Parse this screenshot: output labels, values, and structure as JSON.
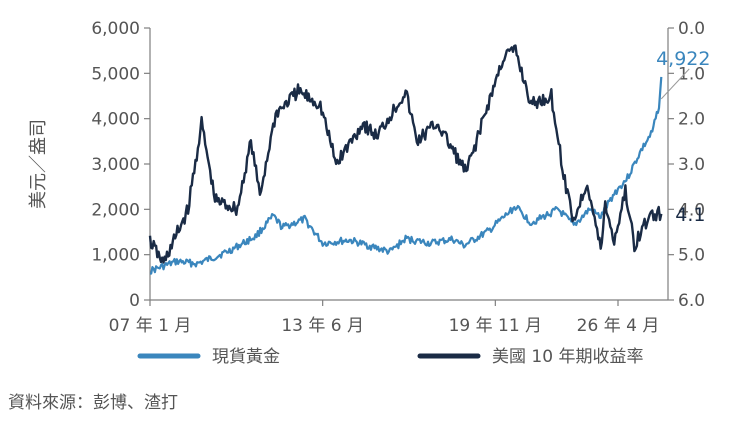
{
  "chart_data": {
    "type": "line",
    "ylabel": "美元／盎司",
    "y_left": {
      "min": 0,
      "max": 6000,
      "ticks": [
        "6,000",
        "5,000",
        "4,000",
        "3,000",
        "2,000",
        "1,000",
        "0"
      ]
    },
    "y_right": {
      "min": 0.0,
      "max": 6.0,
      "inverted": true,
      "ticks": [
        "0.0",
        "1.0",
        "2.0",
        "3.0",
        "4.0",
        "5.0",
        "6.0"
      ]
    },
    "x_ticks": [
      "07 年 1 月",
      "13 年 6 月",
      "19 年 11 月",
      "26 年 4 月"
    ],
    "x_range": [
      "2007-01",
      "2026-04"
    ],
    "series": [
      {
        "name": "現貨黃金",
        "axis": "left",
        "color": "#3a86bd",
        "end_label": "4,922",
        "points": [
          [
            "2007-01",
            640
          ],
          [
            "2008-01",
            850
          ],
          [
            "2008-10",
            800
          ],
          [
            "2009-06",
            950
          ],
          [
            "2010-01",
            1100
          ],
          [
            "2010-12",
            1400
          ],
          [
            "2011-08",
            1850
          ],
          [
            "2011-12",
            1600
          ],
          [
            "2012-10",
            1780
          ],
          [
            "2013-06",
            1250
          ],
          [
            "2014-06",
            1320
          ],
          [
            "2015-12",
            1060
          ],
          [
            "2016-07",
            1350
          ],
          [
            "2017-06",
            1250
          ],
          [
            "2018-04",
            1340
          ],
          [
            "2018-09",
            1200
          ],
          [
            "2019-08",
            1520
          ],
          [
            "2020-08",
            2060
          ],
          [
            "2021-03",
            1700
          ],
          [
            "2022-03",
            2000
          ],
          [
            "2022-10",
            1640
          ],
          [
            "2023-05",
            2000
          ],
          [
            "2023-10",
            1830
          ],
          [
            "2024-04",
            2350
          ],
          [
            "2024-10",
            2700
          ],
          [
            "2025-04",
            3300
          ],
          [
            "2025-09",
            3700
          ],
          [
            "2025-12",
            4300
          ],
          [
            "2026-01",
            4922
          ]
        ]
      },
      {
        "name": "美國 10 年期收益率",
        "axis": "right",
        "color": "#1a2b45",
        "end_label": "4.1",
        "points": [
          [
            "2007-01",
            4.7
          ],
          [
            "2007-07",
            5.2
          ],
          [
            "2008-06",
            4.0
          ],
          [
            "2008-12",
            2.1
          ],
          [
            "2009-06",
            3.8
          ],
          [
            "2010-04",
            4.0
          ],
          [
            "2010-10",
            2.5
          ],
          [
            "2011-02",
            3.7
          ],
          [
            "2011-09",
            1.9
          ],
          [
            "2012-07",
            1.4
          ],
          [
            "2013-05",
            1.7
          ],
          [
            "2013-12",
            3.0
          ],
          [
            "2014-12",
            2.1
          ],
          [
            "2015-06",
            2.4
          ],
          [
            "2016-07",
            1.4
          ],
          [
            "2016-12",
            2.5
          ],
          [
            "2017-09",
            2.1
          ],
          [
            "2018-10",
            3.2
          ],
          [
            "2019-09",
            1.5
          ],
          [
            "2020-03",
            0.6
          ],
          [
            "2020-08",
            0.5
          ],
          [
            "2021-03",
            1.7
          ],
          [
            "2021-12",
            1.5
          ],
          [
            "2022-06",
            3.4
          ],
          [
            "2022-10",
            4.25
          ],
          [
            "2023-04",
            3.4
          ],
          [
            "2023-10",
            4.9
          ],
          [
            "2023-12",
            3.9
          ],
          [
            "2024-04",
            4.7
          ],
          [
            "2024-09",
            3.6
          ],
          [
            "2025-01",
            4.8
          ],
          [
            "2025-05",
            4.4
          ],
          [
            "2025-09",
            4.1
          ],
          [
            "2026-01",
            4.1
          ]
        ]
      }
    ]
  },
  "source_text": "資料來源：彭博、渣打"
}
